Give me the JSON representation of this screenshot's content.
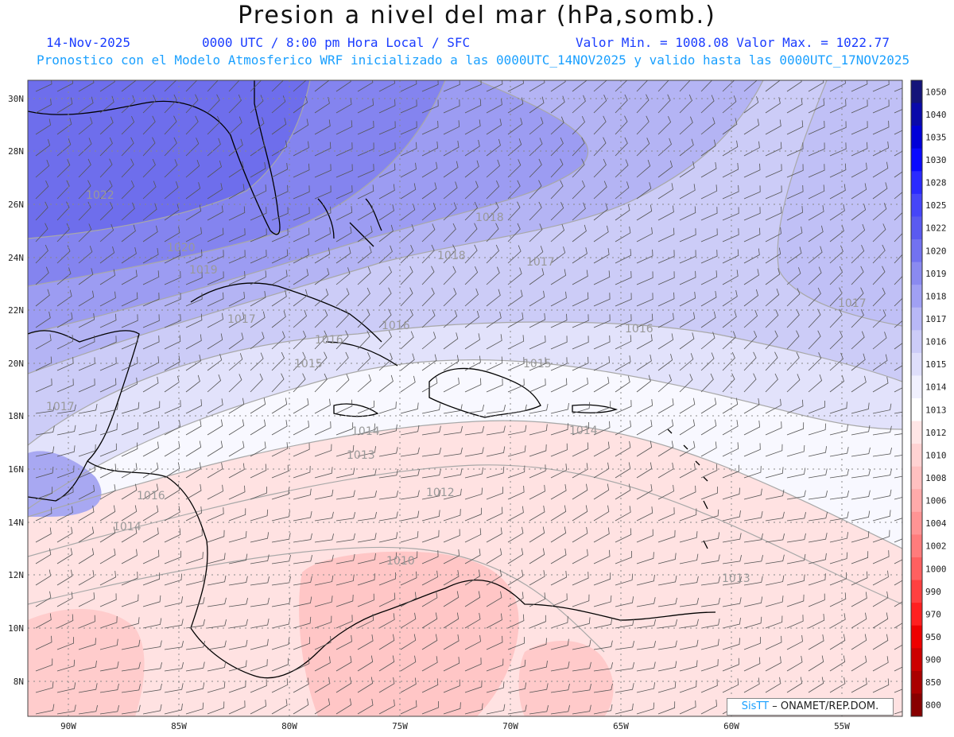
{
  "header": {
    "title": "Presion a nivel del mar (hPa,somb.)",
    "date": "14-Nov-2025",
    "time_info": "0000 UTC / 8:00 pm Hora Local / SFC",
    "minmax": "Valor Min. = 1008.08  Valor Max. = 1022.77",
    "forecast_info": "Pronostico con el Modelo Atmosferico WRF inicializado a las 0000UTC_14NOV2025 y valido hasta las  0000UTC_17NOV2025"
  },
  "axes": {
    "lat_labels": [
      "30N",
      "28N",
      "26N",
      "24N",
      "22N",
      "20N",
      "18N",
      "16N",
      "14N",
      "12N",
      "10N",
      "8N"
    ],
    "lon_labels": [
      "90W",
      "85W",
      "80W",
      "75W",
      "70W",
      "65W",
      "60W",
      "55W"
    ]
  },
  "colorbar": {
    "labels": [
      "1050",
      "1040",
      "1035",
      "1030",
      "1028",
      "1025",
      "1022",
      "1020",
      "1019",
      "1018",
      "1017",
      "1016",
      "1015",
      "1014",
      "1013",
      "1012",
      "1010",
      "1008",
      "1006",
      "1004",
      "1002",
      "1000",
      "990",
      "970",
      "950",
      "900",
      "850",
      "800"
    ],
    "colors": [
      "#14147a",
      "#0a0aaa",
      "#0000d8",
      "#0a0aff",
      "#2a2aff",
      "#4646f8",
      "#5a5af0",
      "#7272f0",
      "#8a8af0",
      "#a0a0f4",
      "#b8b8f6",
      "#ccccf8",
      "#dedefb",
      "#f0f0fe",
      "#ffffff",
      "#ffe6e6",
      "#ffd2d2",
      "#ffc0c0",
      "#ffaaaa",
      "#ff9494",
      "#ff7c7c",
      "#ff6060",
      "#ff4040",
      "#ff2020",
      "#ee0000",
      "#cc0000",
      "#aa0000",
      "#880000"
    ]
  },
  "contour_labels": [
    {
      "text": "1022"
    },
    {
      "text": "1020"
    },
    {
      "text": "1019"
    },
    {
      "text": "1018"
    },
    {
      "text": "1018"
    },
    {
      "text": "1017"
    },
    {
      "text": "1017"
    },
    {
      "text": "1017"
    },
    {
      "text": "1017"
    },
    {
      "text": "1016"
    },
    {
      "text": "1016"
    },
    {
      "text": "1016"
    },
    {
      "text": "1016"
    },
    {
      "text": "1015"
    },
    {
      "text": "1015"
    },
    {
      "text": "1014"
    },
    {
      "text": "1014"
    },
    {
      "text": "1014"
    },
    {
      "text": "1013"
    },
    {
      "text": "1013"
    },
    {
      "text": "1012"
    },
    {
      "text": "1010"
    }
  ],
  "credit": {
    "logo": "SisTT",
    "org": "– ONAMET/REP.DOM."
  },
  "colors": {
    "high_pressure": "#5a5af0",
    "low_pressure": "#ffc0c0",
    "land_outline": "#000000"
  }
}
